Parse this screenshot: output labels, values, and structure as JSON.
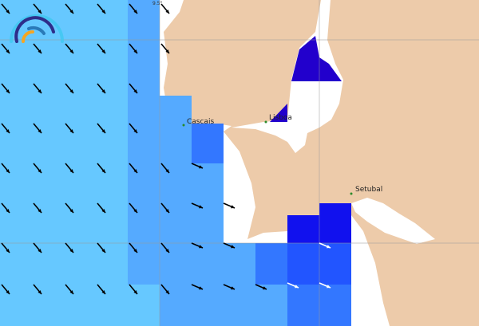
{
  "map": {
    "grid_label": "9.5°",
    "cities": [
      {
        "name": "Cascais"
      },
      {
        "name": "Lisboa"
      },
      {
        "name": "Setubal"
      }
    ],
    "colors": {
      "land": "#edcbaa",
      "water": "#ffffff",
      "level1": "#66c8ff",
      "level2": "#55aaff",
      "level3": "#3377ff",
      "level4": "#2255ff",
      "level5": "#1111ee",
      "level6": "#2200cc",
      "arrow": "#000000",
      "city_dot": "#2a8a2a"
    },
    "icons": {
      "logo": "rainbow-arc-logo",
      "arrow": "direction-arrow-icon"
    }
  }
}
